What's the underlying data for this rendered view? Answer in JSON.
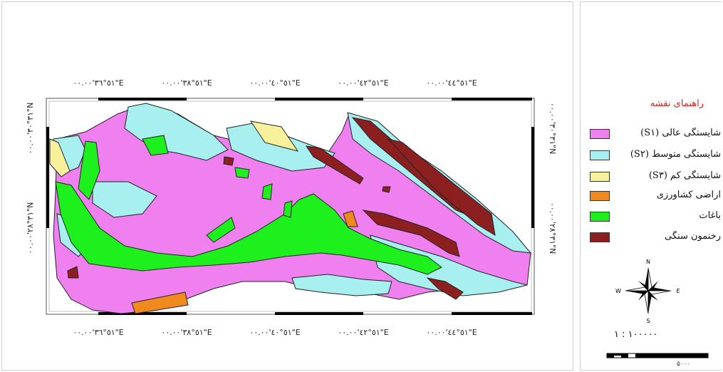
{
  "map": {
    "top_longitudes": [
      "٥١°٣٦'٠٠.٠٠\"E",
      "٥١°٣٨'٠٠.٠٠\"E",
      "٥١°٤٠'٠٠.٠٠\"E",
      "٥١°٤٢'٠٠.٠٠\"E",
      "٥١°٤٤'٠٠.٠٠\"E"
    ],
    "bottom_longitudes": [
      "٥١°٣٦'٠٠.٠٠\"E",
      "٥١°٣٨'٠٠.٠٠\"E",
      "٥١°٤٠'٠٠.٠٠\"E",
      "٥١°٤٢'٠٠.٠٠\"E",
      "٥١°٤٤'٠٠.٠٠\"E"
    ],
    "left_latitudes": [
      "٣١°٣٠'٠٠.٠٠\"N",
      "٣١°٢٨'٠٠.٠٠\"N"
    ],
    "right_latitudes": [
      "٣١°٣٠'٠٠.٠٠\"N",
      "٣١°٢٨'٠٠.٠٠\"N"
    ]
  },
  "legend": {
    "title": "راهنمای نقشه",
    "items": [
      {
        "label": "شایستگی عالی (S۱)",
        "color": "#f07ff0"
      },
      {
        "label": "شایستگی متوسط (S۲)",
        "color": "#a8f0f0"
      },
      {
        "label": "شایستگی کم (S۳)",
        "color": "#f8f09a"
      },
      {
        "label": "اراضی کشاورزی",
        "color": "#f08a1e"
      },
      {
        "label": "باغات",
        "color": "#1ef01e"
      },
      {
        "label": "رخنمون سنگی",
        "color": "#8c2020"
      }
    ]
  },
  "north_arrow": {
    "n": "N",
    "s": "S",
    "e": "E",
    "w": "W",
    "icon": "compass-rose-icon"
  },
  "scale": {
    "ratio": "۱ : ۱۰۰۰۰۰",
    "bar_end_label": "۵۰۰۰"
  }
}
